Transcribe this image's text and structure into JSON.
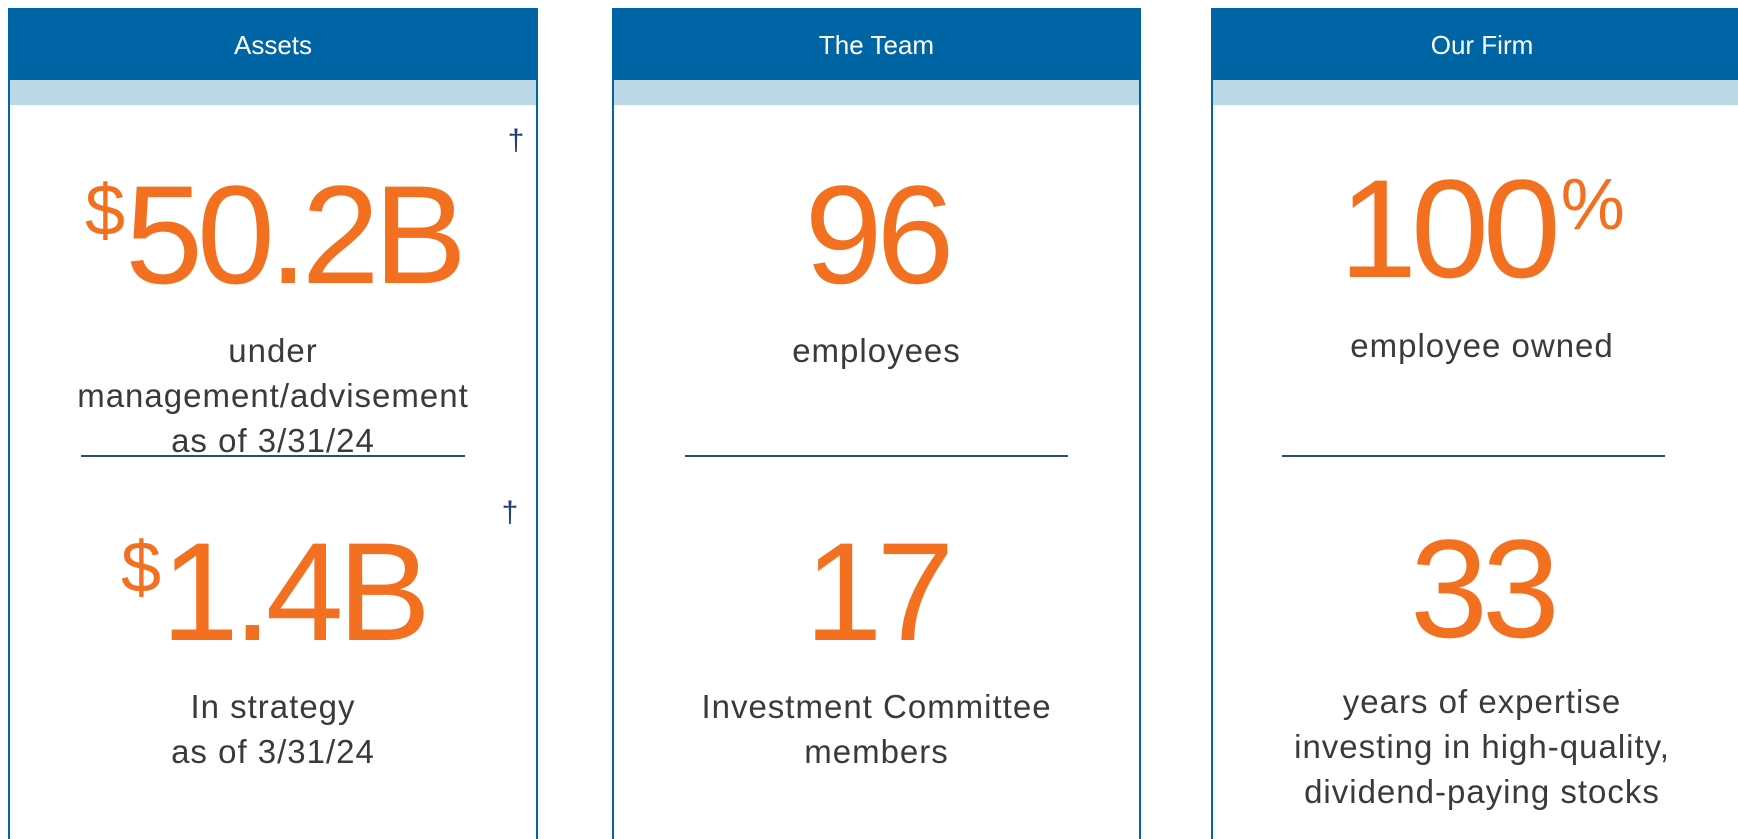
{
  "cards": [
    {
      "header": "Assets",
      "stats": [
        {
          "prefix": "$",
          "value": "50.2B",
          "mark": "†",
          "caption": [
            "under",
            "management/advisement",
            "as of 3/31/24"
          ]
        },
        {
          "prefix": "$",
          "value": "1.4B",
          "mark": "†",
          "caption": [
            "In strategy",
            "as of 3/31/24"
          ]
        }
      ]
    },
    {
      "header": "The Team",
      "stats": [
        {
          "value": "96",
          "caption": [
            "employees"
          ]
        },
        {
          "value": "17",
          "caption": [
            "Investment Committee",
            "members"
          ]
        }
      ]
    },
    {
      "header": "Our Firm",
      "stats": [
        {
          "value": "100",
          "suffix": "%",
          "caption": [
            "employee owned"
          ]
        },
        {
          "value": "33",
          "caption": [
            "years of expertise",
            "investing in high-quality,",
            "dividend-paying stocks"
          ]
        }
      ]
    }
  ]
}
